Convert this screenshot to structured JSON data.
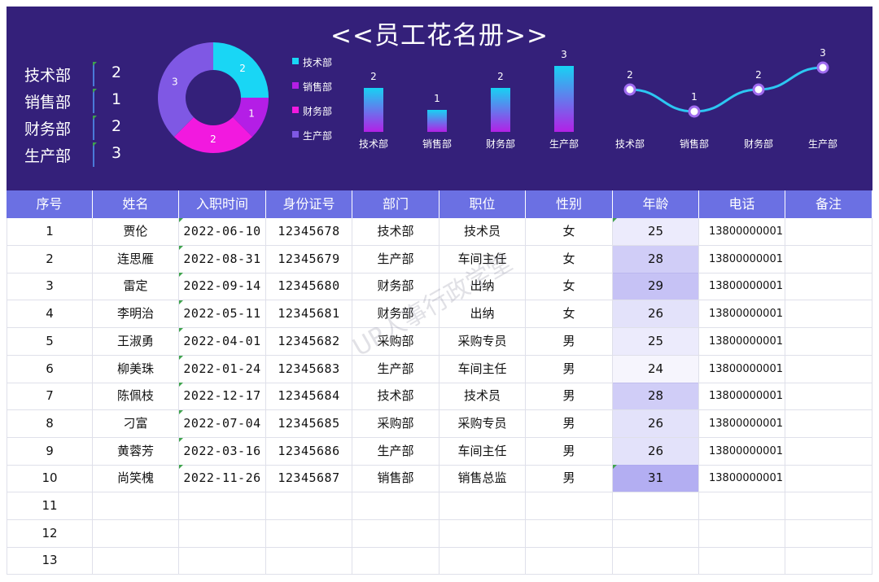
{
  "title": "<<员工花名册>>",
  "summary": [
    {
      "dept": "技术部",
      "count": "2"
    },
    {
      "dept": "销售部",
      "count": "1"
    },
    {
      "dept": "财务部",
      "count": "2"
    },
    {
      "dept": "生产部",
      "count": "3"
    }
  ],
  "colors": {
    "banner": "#34207a",
    "header": "#6b70e3",
    "donut": [
      "#19d6f5",
      "#b41ee6",
      "#f219df",
      "#7f58e4"
    ],
    "bar_top": "#17d2f3",
    "bar_bottom": "#b320e6",
    "line": "#2cc7f2",
    "age_highlight": "#c7c5f7"
  },
  "chart_data": [
    {
      "type": "pie",
      "variant": "donut",
      "categories": [
        "技术部",
        "销售部",
        "财务部",
        "生产部"
      ],
      "values": [
        2,
        1,
        2,
        3
      ],
      "legend": "right"
    },
    {
      "type": "bar",
      "categories": [
        "技术部",
        "销售部",
        "财务部",
        "生产部"
      ],
      "values": [
        2,
        1,
        2,
        3
      ],
      "ylim": [
        0,
        3
      ]
    },
    {
      "type": "line",
      "smooth": true,
      "categories": [
        "技术部",
        "销售部",
        "财务部",
        "生产部"
      ],
      "values": [
        2,
        1,
        2,
        3
      ],
      "ylim": [
        0,
        3
      ]
    }
  ],
  "table": {
    "headers": [
      "序号",
      "姓名",
      "入职时间",
      "身份证号",
      "部门",
      "职位",
      "性别",
      "年龄",
      "电话",
      "备注"
    ],
    "rows": [
      [
        "1",
        "贾伦",
        "2022-06-10",
        "12345678",
        "技术部",
        "技术员",
        "女",
        "25",
        "13800000001",
        ""
      ],
      [
        "2",
        "连思雁",
        "2022-08-31",
        "12345679",
        "生产部",
        "车间主任",
        "女",
        "28",
        "13800000001",
        ""
      ],
      [
        "3",
        "雷定",
        "2022-09-14",
        "12345680",
        "财务部",
        "出纳",
        "女",
        "29",
        "13800000001",
        ""
      ],
      [
        "4",
        "李明治",
        "2022-05-11",
        "12345681",
        "财务部",
        "出纳",
        "女",
        "26",
        "13800000001",
        ""
      ],
      [
        "5",
        "王淑勇",
        "2022-04-01",
        "12345682",
        "采购部",
        "采购专员",
        "男",
        "25",
        "13800000001",
        ""
      ],
      [
        "6",
        "柳美珠",
        "2022-01-24",
        "12345683",
        "生产部",
        "车间主任",
        "男",
        "24",
        "13800000001",
        ""
      ],
      [
        "7",
        "陈佩枝",
        "2022-12-17",
        "12345684",
        "技术部",
        "技术员",
        "男",
        "28",
        "13800000001",
        ""
      ],
      [
        "8",
        "刁富",
        "2022-07-04",
        "12345685",
        "采购部",
        "采购专员",
        "男",
        "26",
        "13800000001",
        ""
      ],
      [
        "9",
        "黄蓉芳",
        "2022-03-16",
        "12345686",
        "生产部",
        "车间主任",
        "男",
        "26",
        "13800000001",
        ""
      ],
      [
        "10",
        "尚笑槐",
        "2022-11-26",
        "12345687",
        "销售部",
        "销售总监",
        "男",
        "31",
        "13800000001",
        ""
      ],
      [
        "11",
        "",
        "",
        "",
        "",
        "",
        "",
        "",
        "",
        ""
      ],
      [
        "12",
        "",
        "",
        "",
        "",
        "",
        "",
        "",
        "",
        ""
      ],
      [
        "13",
        "",
        "",
        "",
        "",
        "",
        "",
        "",
        "",
        ""
      ]
    ]
  },
  "watermark": "UP人事行政学堂"
}
